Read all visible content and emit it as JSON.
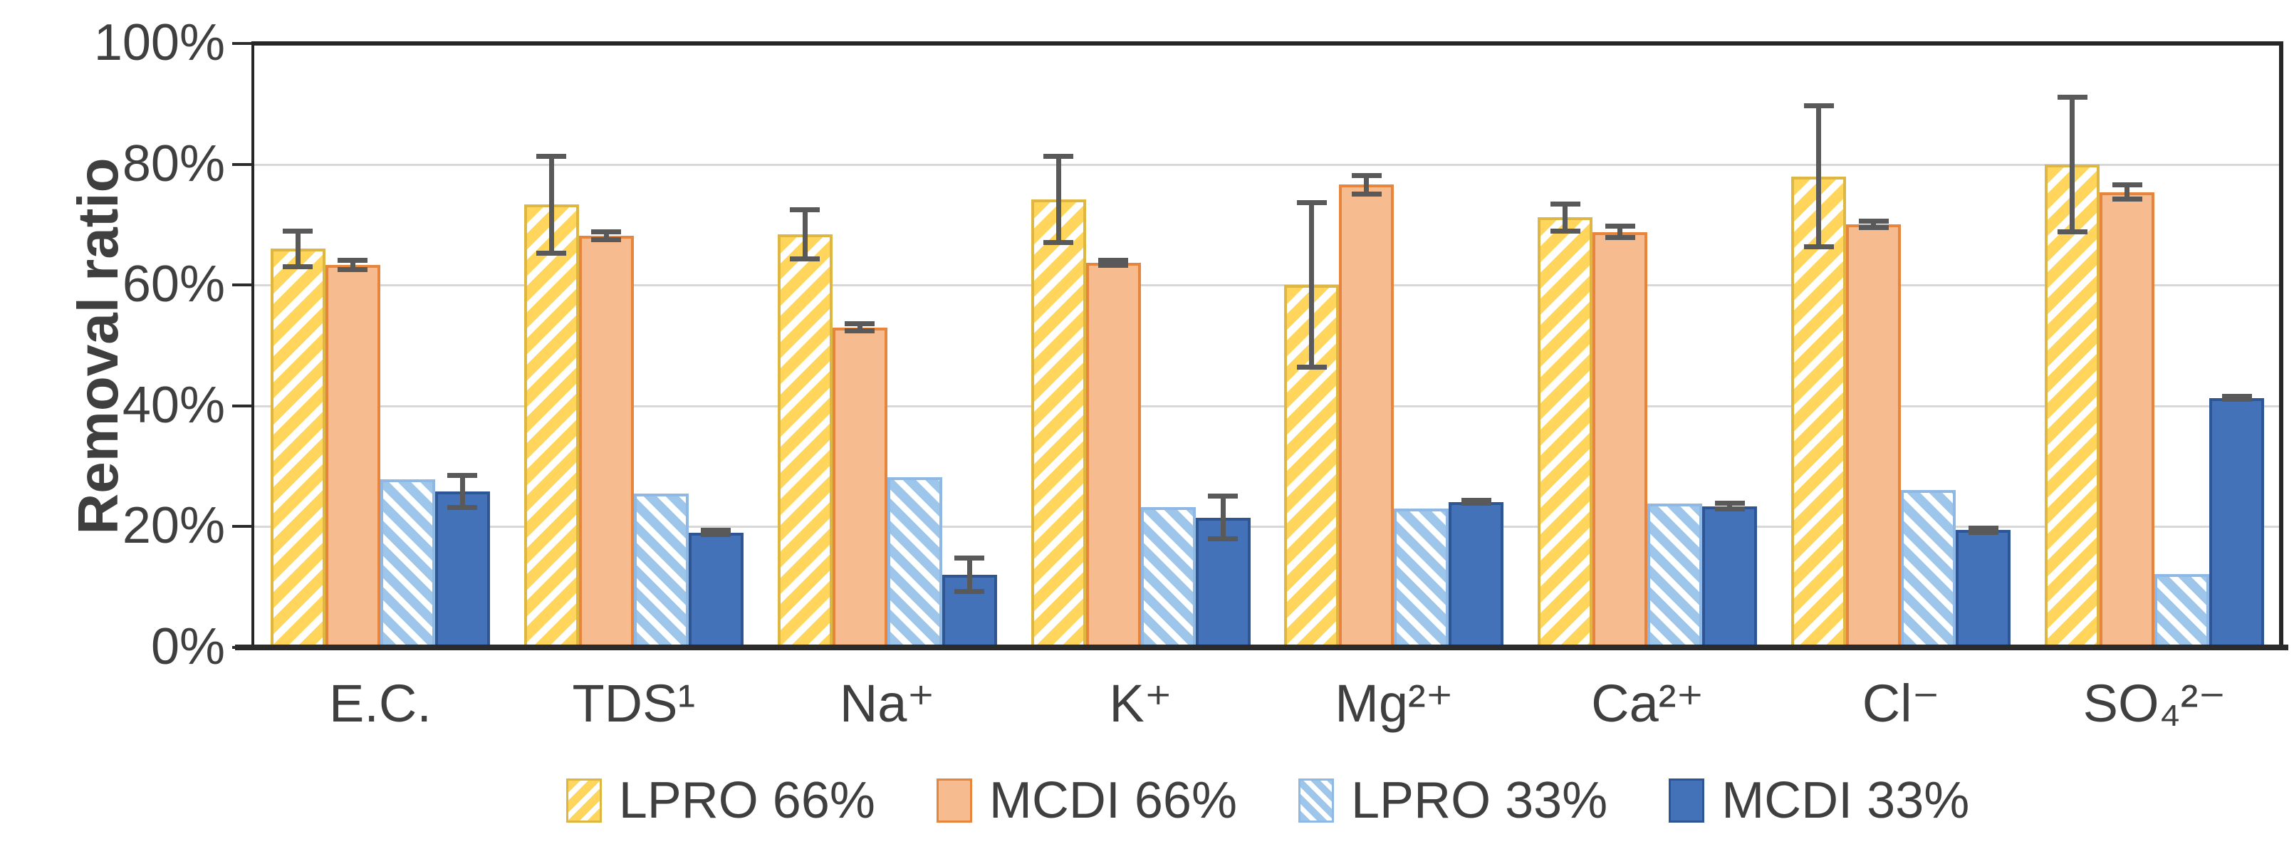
{
  "chart_data": {
    "type": "bar",
    "title": "",
    "xlabel": "",
    "ylabel": "Removal ratio",
    "ylim": [
      0,
      100
    ],
    "grid": "horizontal",
    "legend_position": "bottom",
    "background": "#FFFFFF",
    "grid_color": "#D8D8D8",
    "axis_color": "#262626",
    "text_color": "#3F3F3F",
    "error_bar_color": "#595959",
    "yticks": [
      {
        "value": 0,
        "label": "0%"
      },
      {
        "value": 20,
        "label": "20%"
      },
      {
        "value": 40,
        "label": "40%"
      },
      {
        "value": 60,
        "label": "60%"
      },
      {
        "value": 80,
        "label": "80%"
      },
      {
        "value": 100,
        "label": "100%"
      }
    ],
    "categories": [
      "E.C.",
      "TDS¹",
      "Na⁺",
      "K⁺",
      "Mg²⁺",
      "Ca²⁺",
      "Cl⁻",
      "SO₄²⁻"
    ],
    "series": [
      {
        "name": "LPRO 66%",
        "pattern": "hatch-forward",
        "fill": "#FFD55C",
        "stroke": "#DDB742",
        "values": [
          66.0,
          73.3,
          68.4,
          74.2,
          60.0,
          71.2,
          78.0,
          79.9
        ],
        "errors": [
          3.0,
          8.1,
          4.1,
          7.2,
          13.7,
          2.3,
          11.7,
          11.2
        ]
      },
      {
        "name": "MCDI 66%",
        "pattern": "solid",
        "fill": "#F6BB8F",
        "stroke": "#E8853D",
        "values": [
          63.3,
          68.2,
          53.0,
          63.7,
          76.6,
          68.8,
          70.0,
          75.4
        ],
        "errors": [
          0.8,
          0.7,
          0.7,
          0.5,
          1.6,
          1.0,
          0.6,
          1.2
        ]
      },
      {
        "name": "LPRO 33%",
        "pattern": "hatch-back",
        "fill": "#9EC6EA",
        "stroke": "#8FB9E4",
        "values": [
          27.8,
          25.5,
          28.2,
          23.2,
          23.0,
          23.8,
          26.1,
          12.2
        ],
        "errors": [
          null,
          null,
          null,
          null,
          null,
          null,
          null,
          null
        ]
      },
      {
        "name": "MCDI 33%",
        "pattern": "solid",
        "fill": "#4472B9",
        "stroke": "#2F5694",
        "values": [
          25.8,
          19.0,
          12.0,
          21.5,
          24.1,
          23.4,
          19.4,
          41.3
        ],
        "errors": [
          2.7,
          0.4,
          2.8,
          3.6,
          0.3,
          0.5,
          0.4,
          0.3
        ]
      }
    ]
  }
}
